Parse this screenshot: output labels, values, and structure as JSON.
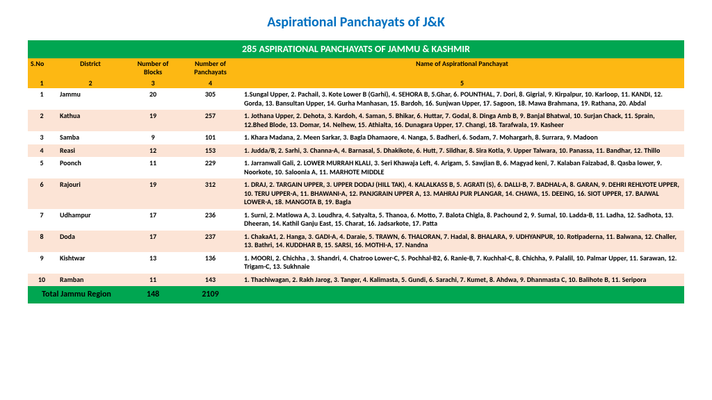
{
  "title": "Aspirational Panchayats of J&K",
  "banner": "285 ASPIRATIONAL PANCHAYATS OF JAMMU & KASHMIR",
  "headers": {
    "sno": "S.No",
    "district": "District",
    "blocks": "Number of Blocks",
    "panchayats": "Number of Panchayats",
    "names": "Name of Aspirational Panchayat"
  },
  "header_nums": {
    "c1": "1",
    "c2": "2",
    "c3": "3",
    "c4": "4",
    "c5": "5"
  },
  "rows": [
    {
      "sno": "1",
      "district": "Jammu",
      "blocks": "20",
      "panch": "305",
      "names": "1.Sungal Upper,  2. Pachail,  3. Kote Lower B (Garhi),  4. SEHORA B,  5.Ghar,  6. POUNTHAL, 7. Dori,  8. Gigrial, 9. Kirpalpur,  10. Karloop,  11. KANDI,  12. Gorda,  13. Bansultan Upper, 14. Gurha Manhasan, 15. Bardoh,  16. Sunjwan Upper,  17. Sagoon,  18. Mawa Brahmana,  19. Rathana,  20. Abdal"
    },
    {
      "sno": "2",
      "district": "Kathua",
      "blocks": "19",
      "panch": "257",
      "names": "1. Jothana Upper, 2. Dehota, 3. Kardoh, 4. Saman, 5. Bhikar, 6. Huttar, 7. Godal, 8. Dinga Amb B, 9. Banjal Bhatwal, 10. Surjan Chack, 11. Sprain, 12.Bhed Blode, 13. Domar, 14. Nelhew, 15. Athialta, 16. Dunagara Upper, 17. Changi, 18. Tarafwala, 19. Kasheer"
    },
    {
      "sno": "3",
      "district": "Samba",
      "blocks": "9",
      "panch": "101",
      "names": "1. Khara Madana, 2. Meen Sarkar, 3. Bagla Dhamaore, 4. Nanga, 5. Badheri, 6. Sodam, 7. Mohargarh, 8. Surrara, 9. Madoon"
    },
    {
      "sno": "4",
      "district": "Reasi",
      "blocks": "12",
      "panch": "153",
      "names": "1. Judda/B, 2. Sarhi, 3. Channa-A, 4. Barnasal, 5. Dhakikote, 6. Hutt, 7. Sildhar, 8. Sira Kotla, 9. Upper Talwara, 10. Panassa, 11. Bandhar, 12. Thillo"
    },
    {
      "sno": "5",
      "district": "Poonch",
      "blocks": "11",
      "panch": "229",
      "names": "1. Jarranwali Gali, 2. LOWER MURRAH KLALI, 3. Seri Khawaja Left, 4. Arigam, 5. Sawjian B, 6. Magyad keni, 7. Kalaban Faizabad, 8. Qasba lower, 9. Noorkote, 10. Saloonia A, 11. MARHOTE MIDDLE"
    },
    {
      "sno": "6",
      "district": "Rajouri",
      "blocks": "19",
      "panch": "312",
      "names": "1. DRAJ, 2. TARGAIN UPPER, 3. UPPER DODAJ (HILL TAK), 4. KALALKASS B, 5. AGRATI (S), 6. DALLI-B, 7. BADHAL-A, 8. GARAN, 9. DEHRI REHLYOTE UPPER, 10. TERU UPPER-A, 11. BHAWANI-A, 12. PANJGRAIN UPPER A, 13. MAHRAJ PUR PLANGAR, 14. CHAWA, 15. DEEING, 16. SIOT UPPER, 17. BAJWAL LOWER-A, 18. MANGOTA B, 19. Bagla"
    },
    {
      "sno": "7",
      "district": "Udhampur",
      "blocks": "17",
      "panch": "236",
      "names": "1. Surni,  2. Matlowa A, 3. Loudhra, 4. Satyalta,  5. Thanoa,  6. Motto,  7. Balota Chigla,  8. Pachound 2, 9. Sumal,  10. Ladda-B, 11. Ladha,  12. Sadhota,  13. Dheeran,  14. Kathil Ganju East, 15. Charat, 16. Jadsarkote, 17. Patta"
    },
    {
      "sno": "8",
      "district": "Doda",
      "blocks": "17",
      "panch": "237",
      "names": "1. ChakaA1, 2. Hanga, 3. GADI-A, 4. Daraie, 5. TRAWN, 6. THALORAN, 7. Hadal, 8. BHALARA, 9. UDHYANPUR, 10. Rotipaderna, 11. Balwana, 12. Challer, 13. Bathri, 14. KUDDHAR B, 15. SARSI, 16. MOTHI-A, 17. Nandna"
    },
    {
      "sno": "9",
      "district": "Kishtwar",
      "blocks": "13",
      "panch": "136",
      "names": "1. MOORI, 2. Chichha , 3. Shandri, 4. Chatroo Lower-C, 5. Pochhal-B2, 6. Ranie-B, 7. Kuchhal-C, 8. Chichha, 9. Palalil, 10. Palmar Upper, 11. Sarawan, 12. Trigam-C, 13. Sukhnaie"
    },
    {
      "sno": "10",
      "district": "Ramban",
      "blocks": "11",
      "panch": "143",
      "names": "1. Thachiwagan, 2. Rakh Jarog, 3. Tanger, 4. Kalimasta, 5. Gundi, 6. Sarachi, 7. Kumet, 8. Ahdwa, 9. Dhanmasta C, 10. Balihote B, 11. Seripora"
    }
  ],
  "total": {
    "label": "Total Jammu Region",
    "blocks": "148",
    "panch": "2109",
    "names": ""
  },
  "colors": {
    "green": "#00a651",
    "yellow": "#fdb813",
    "peach": "#fce4d6",
    "title": "#0070c0"
  }
}
